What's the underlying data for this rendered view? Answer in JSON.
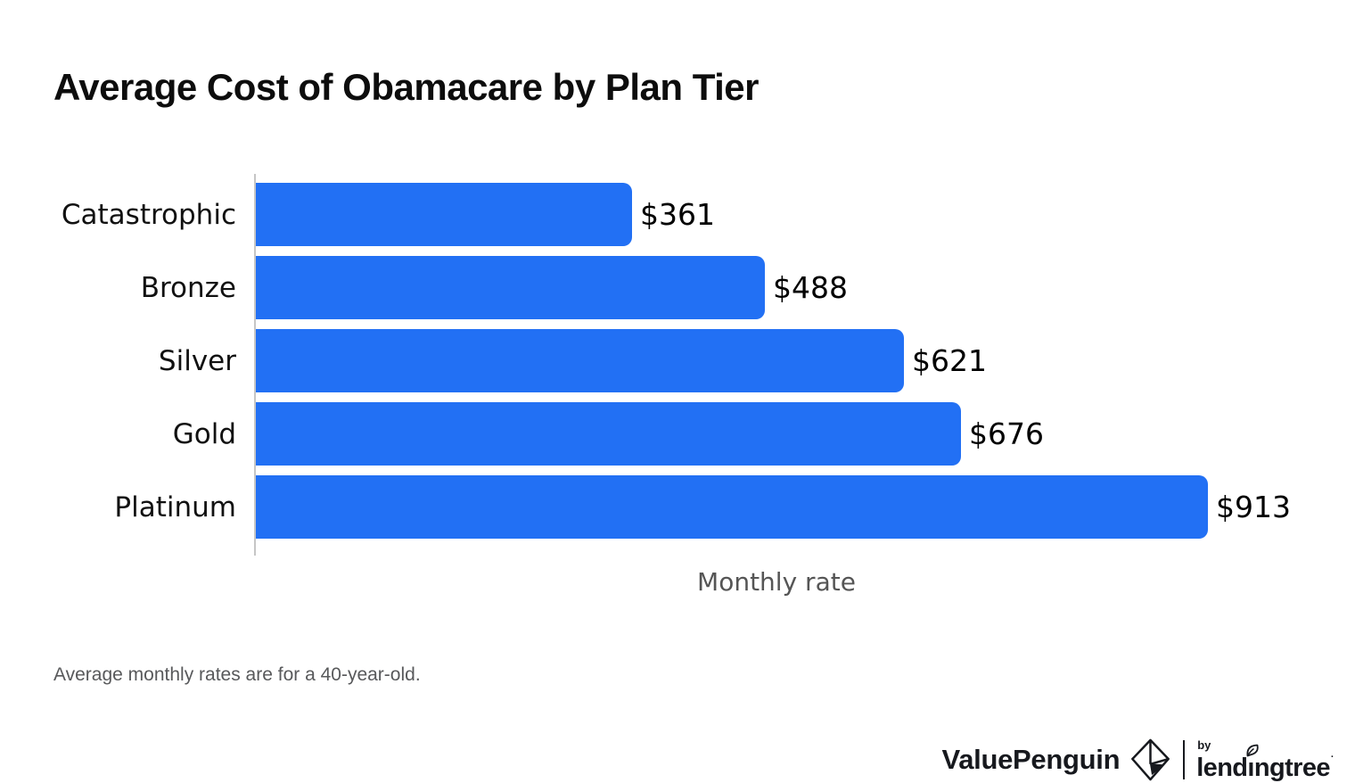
{
  "title": "Average Cost of Obamacare by Plan Tier",
  "chart_data": {
    "type": "bar",
    "orientation": "horizontal",
    "title": "Average Cost of Obamacare by Plan Tier",
    "categories": [
      "Catastrophic",
      "Bronze",
      "Silver",
      "Gold",
      "Platinum"
    ],
    "values": [
      361,
      488,
      621,
      676,
      913
    ],
    "value_labels": [
      "$361",
      "$488",
      "$621",
      "$676",
      "$913"
    ],
    "xlabel": "Monthly rate",
    "ylabel": "",
    "xlim": [
      0,
      1000
    ],
    "grid": false,
    "legend": "none",
    "bar_color": "#2270f4",
    "axis_color": "#c6c6c6",
    "value_label_position": "end-of-bar"
  },
  "footnote": "Average monthly rates are for a 40-year-old.",
  "footer": {
    "brand": "ValuePenguin",
    "by": "by",
    "partner": "lendingtree",
    "trademark": "·",
    "logo_icon": "valuepenguin-origami-mark",
    "text_color": "#17191e"
  }
}
